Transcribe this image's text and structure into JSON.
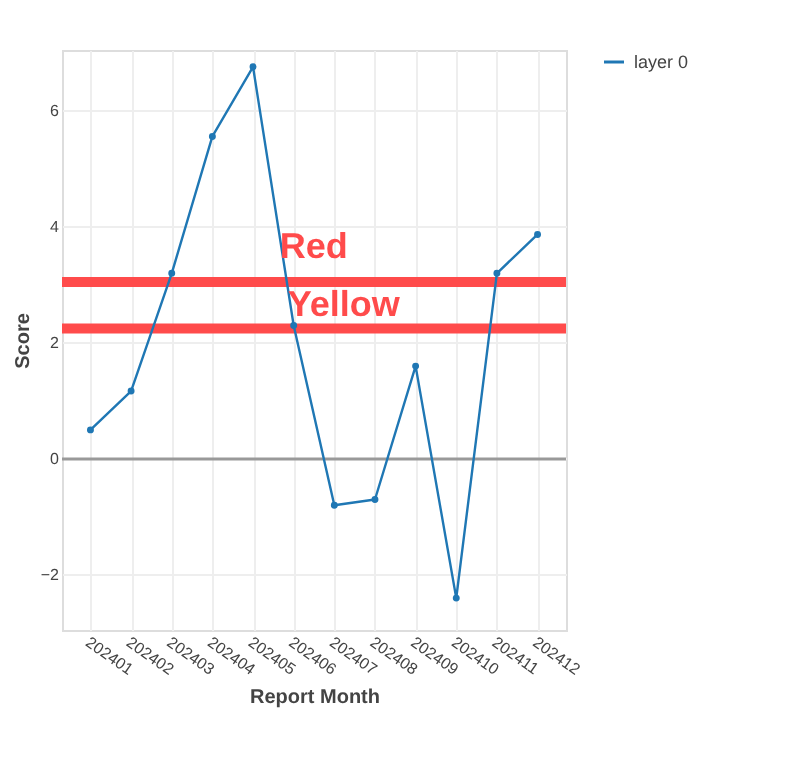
{
  "chart_data": {
    "type": "line",
    "xlabel": "Report Month",
    "ylabel": "Score",
    "categories": [
      "202401",
      "202402",
      "202403",
      "202404",
      "202405",
      "202406",
      "202407",
      "202408",
      "202409",
      "202410",
      "202411",
      "202412"
    ],
    "series": [
      {
        "name": "layer 0",
        "color": "#1f77b4",
        "values": [
          0.5,
          1.17,
          3.2,
          5.56,
          6.76,
          2.3,
          -0.8,
          -0.7,
          1.6,
          -2.4,
          3.2,
          3.87
        ]
      }
    ],
    "ylim": [
      -2.95,
      7.05
    ],
    "yticks": [
      -2,
      0,
      2,
      4,
      6
    ],
    "grid": true,
    "legend": "top right",
    "marker": "circle",
    "line_style": "solid",
    "ref_lines": [
      {
        "axis": "y",
        "value": 3.05,
        "label": "Red",
        "color": "#ff4b4b"
      },
      {
        "axis": "y",
        "value": 2.25,
        "label": "Yellow",
        "color": "#ff4b4b"
      },
      {
        "axis": "y",
        "value": 0,
        "label": null,
        "color": "#999999"
      }
    ]
  }
}
